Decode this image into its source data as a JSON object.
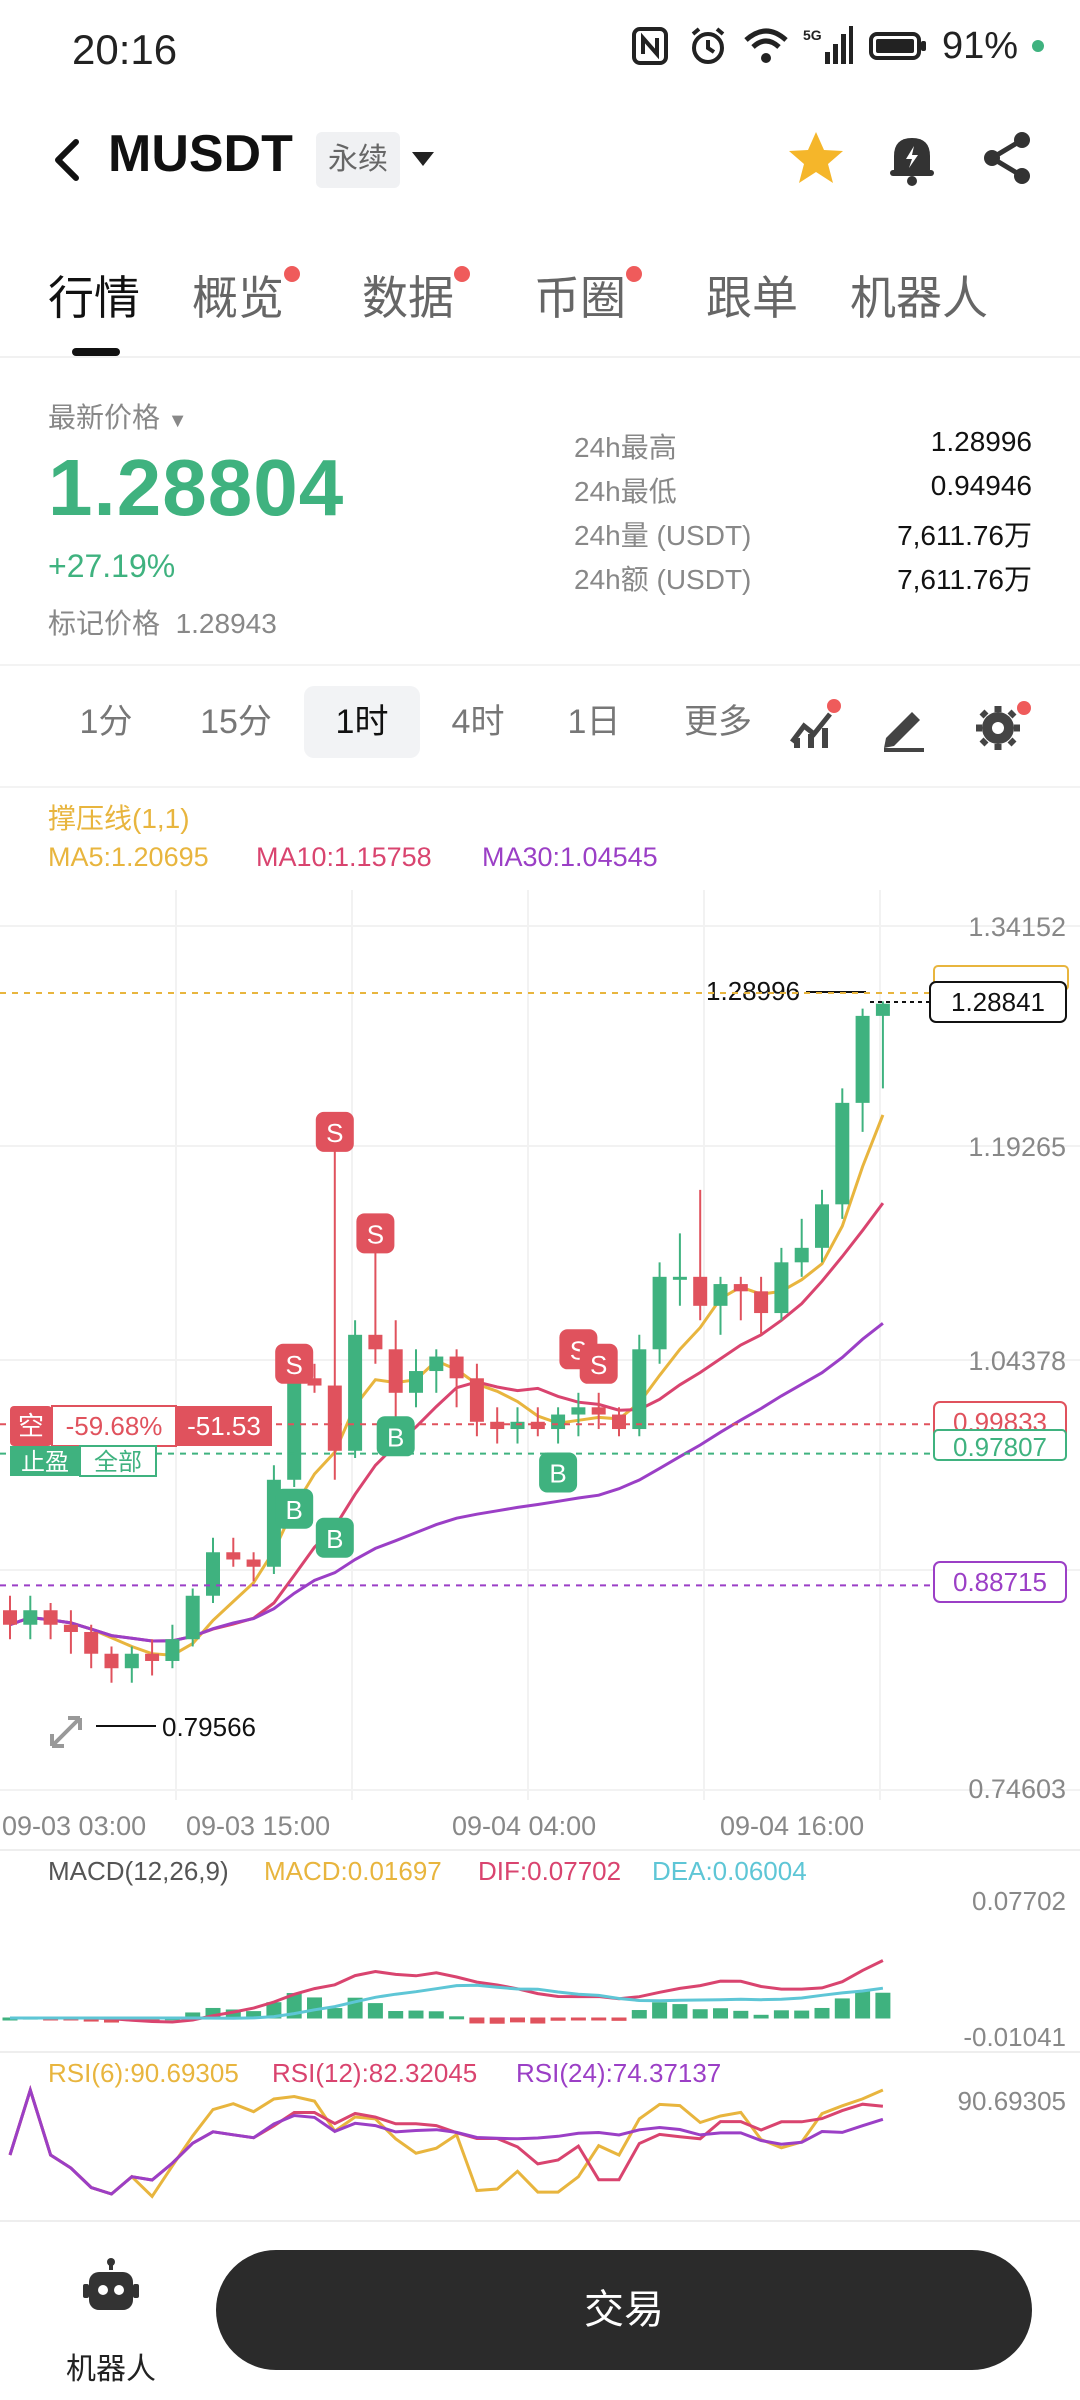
{
  "status": {
    "time": "20:16",
    "battery": "91%",
    "network": "5G"
  },
  "header": {
    "pair": "MUSDT",
    "badge": "永续",
    "icons": [
      "back-icon",
      "chevron-down-icon",
      "star-icon",
      "bell-icon",
      "share-icon"
    ],
    "star_color": "#f5b62a"
  },
  "tabs": [
    {
      "label": "行情",
      "active": true,
      "dot": false
    },
    {
      "label": "概览",
      "active": false,
      "dot": true
    },
    {
      "label": "数据",
      "active": false,
      "dot": true
    },
    {
      "label": "币圈",
      "active": false,
      "dot": true
    },
    {
      "label": "跟单",
      "active": false,
      "dot": false
    },
    {
      "label": "机器人",
      "active": false,
      "dot": false
    }
  ],
  "price": {
    "latest_label": "最新价格",
    "last": "1.28804",
    "change": "+27.19%",
    "mark_label": "标记价格",
    "mark_value": "1.28943",
    "stats": [
      {
        "label": "24h最高",
        "value": "1.28996"
      },
      {
        "label": "24h最低",
        "value": "0.94946"
      },
      {
        "label": "24h量 (USDT)",
        "value": "7,611.76万"
      },
      {
        "label": "24h额 (USDT)",
        "value": "7,611.76万"
      }
    ],
    "up_color": "#3fb27f",
    "down_color": "#e0525d"
  },
  "intervals": {
    "items": [
      "1分",
      "15分",
      "1时",
      "4时",
      "1日",
      "更多"
    ],
    "active": "1时",
    "tools": [
      "indicator-icon",
      "draw-icon",
      "settings-icon"
    ]
  },
  "chart_data": {
    "type": "candlestick",
    "indicator_title": "撑压线(1,1)",
    "ma_labels": [
      "MA5:1.20695",
      "MA10:1.15758",
      "MA30:1.04545"
    ],
    "ma_colors": [
      "#e8b53e",
      "#d9446f",
      "#9b3fc6"
    ],
    "y_ticks": [
      "1.34152",
      "1.19265",
      "1.04378",
      "0.74603"
    ],
    "x_ticks": [
      "09-03 03:00",
      "09-03 15:00",
      "09-04 04:00",
      "09-04 16:00"
    ],
    "ylim": [
      0.74603,
      1.34152
    ],
    "high_label": "1.28996",
    "low_label": "0.79566",
    "current_price": "1.28841",
    "levels": [
      {
        "value": "0.99833",
        "color": "#e0525d"
      },
      {
        "value": "0.97807",
        "color": "#3fb27f"
      },
      {
        "value": "0.88715",
        "color": "#9b3fc6"
      }
    ],
    "position": {
      "side": "空",
      "pnl_pct": "-59.68%",
      "pnl": "-51.53",
      "tp_label": "止盈",
      "tp_scope": "全部"
    },
    "candles": [
      [
        0.87,
        0.86,
        0.88,
        0.85
      ],
      [
        0.86,
        0.87,
        0.88,
        0.85
      ],
      [
        0.87,
        0.86,
        0.875,
        0.85
      ],
      [
        0.86,
        0.855,
        0.87,
        0.84
      ],
      [
        0.855,
        0.84,
        0.86,
        0.83
      ],
      [
        0.84,
        0.83,
        0.845,
        0.82
      ],
      [
        0.83,
        0.84,
        0.845,
        0.82
      ],
      [
        0.84,
        0.835,
        0.85,
        0.825
      ],
      [
        0.835,
        0.85,
        0.86,
        0.83
      ],
      [
        0.85,
        0.88,
        0.885,
        0.845
      ],
      [
        0.88,
        0.91,
        0.92,
        0.875
      ],
      [
        0.91,
        0.905,
        0.92,
        0.9
      ],
      [
        0.905,
        0.9,
        0.91,
        0.89
      ],
      [
        0.9,
        0.96,
        0.97,
        0.895
      ],
      [
        0.96,
        1.03,
        1.04,
        0.955
      ],
      [
        1.03,
        1.025,
        1.04,
        1.02
      ],
      [
        1.025,
        0.98,
        1.2,
        0.96
      ],
      [
        0.98,
        1.06,
        1.07,
        0.975
      ],
      [
        1.06,
        1.05,
        1.13,
        1.04
      ],
      [
        1.05,
        1.02,
        1.07,
        1.0
      ],
      [
        1.02,
        1.035,
        1.05,
        1.01
      ],
      [
        1.035,
        1.045,
        1.05,
        1.02
      ],
      [
        1.045,
        1.03,
        1.05,
        1.01
      ],
      [
        1.03,
        1.0,
        1.04,
        0.99
      ],
      [
        1.0,
        0.995,
        1.01,
        0.985
      ],
      [
        0.995,
        1.0,
        1.01,
        0.985
      ],
      [
        1.0,
        0.995,
        1.01,
        0.99
      ],
      [
        0.995,
        1.005,
        1.01,
        0.985
      ],
      [
        1.005,
        1.01,
        1.02,
        0.99
      ],
      [
        1.01,
        1.005,
        1.02,
        0.995
      ],
      [
        1.005,
        0.995,
        1.01,
        0.99
      ],
      [
        0.995,
        1.05,
        1.06,
        0.99
      ],
      [
        1.05,
        1.1,
        1.11,
        1.04
      ],
      [
        1.1,
        1.1,
        1.13,
        1.08
      ],
      [
        1.1,
        1.08,
        1.16,
        1.07
      ],
      [
        1.08,
        1.095,
        1.1,
        1.06
      ],
      [
        1.095,
        1.09,
        1.1,
        1.07
      ],
      [
        1.09,
        1.075,
        1.1,
        1.06
      ],
      [
        1.075,
        1.11,
        1.12,
        1.07
      ],
      [
        1.11,
        1.12,
        1.14,
        1.1
      ],
      [
        1.12,
        1.15,
        1.16,
        1.11
      ],
      [
        1.15,
        1.22,
        1.23,
        1.14
      ],
      [
        1.22,
        1.28,
        1.285,
        1.2
      ],
      [
        1.28,
        1.28841,
        1.29,
        1.23
      ]
    ],
    "macd": {
      "title": "MACD(12,26,9)",
      "macd": "MACD:0.01697",
      "dif": "DIF:0.07702",
      "dea": "DEA:0.06004",
      "y_ticks": [
        "0.07702",
        "-0.01041"
      ],
      "colors": [
        "#e8b53e",
        "#d9446f",
        "#5ec6d6"
      ]
    },
    "rsi": {
      "rsi6": "RSI(6):90.69305",
      "rsi12": "RSI(12):82.32045",
      "rsi24": "RSI(24):74.37137",
      "y_tick": "90.69305",
      "colors": [
        "#e8b53e",
        "#d9446f",
        "#9b3fc6"
      ]
    },
    "markers": [
      {
        "type": "S",
        "idx": 16,
        "price": 1.2
      },
      {
        "type": "S",
        "idx": 18,
        "price": 1.13
      },
      {
        "type": "S",
        "idx": 14,
        "price": 1.04
      },
      {
        "type": "S",
        "idx": 28,
        "price": 1.05
      },
      {
        "type": "S",
        "idx": 29,
        "price": 1.04
      },
      {
        "type": "B",
        "idx": 14,
        "price": 0.94
      },
      {
        "type": "B",
        "idx": 16,
        "price": 0.92
      },
      {
        "type": "B",
        "idx": 19,
        "price": 0.99
      },
      {
        "type": "B",
        "idx": 27,
        "price": 0.965
      }
    ]
  },
  "bottom": {
    "robot_label": "机器人",
    "trade_label": "交易"
  }
}
